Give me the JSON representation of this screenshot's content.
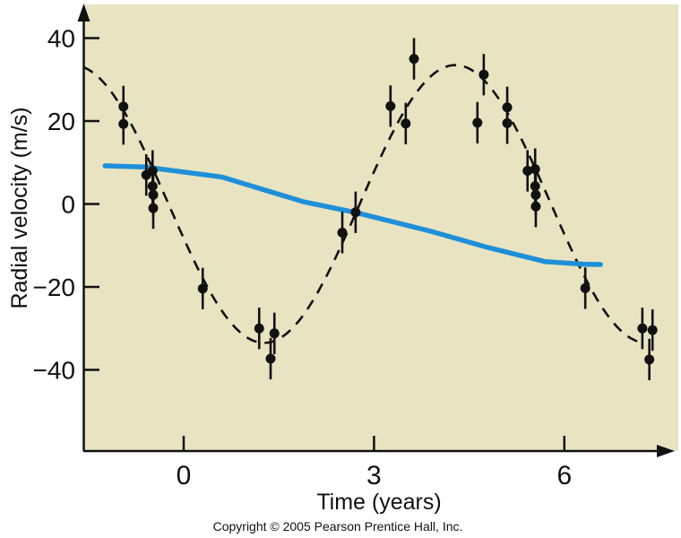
{
  "copyright": "Copyright © 2005 Pearson Prentice Hall, Inc.",
  "chart_data": {
    "type": "scatter",
    "title": "",
    "xlabel": "Time (years)",
    "ylabel": "Radial velocity (m/s)",
    "x_axis": {
      "ticks": [
        0,
        3,
        6
      ],
      "tick_labels": [
        "0",
        "3",
        "6"
      ],
      "range": [
        -1.6,
        7.8
      ]
    },
    "y_axis": {
      "ticks": [
        40,
        20,
        0,
        -20,
        -40
      ],
      "tick_labels": [
        "40",
        "20",
        "0",
        "−20",
        "−40"
      ],
      "range": [
        -60,
        48
      ]
    },
    "grid": false,
    "legend": null,
    "colors": {
      "plot_background": "#e8e4c2",
      "points": "#111111",
      "dashed_fit": "#111111",
      "trend_line": "#1f8fd9"
    },
    "points": {
      "error_bar_mps": 5,
      "data": [
        [
          -0.95,
          23.5
        ],
        [
          -0.95,
          19.3
        ],
        [
          -0.59,
          7.0
        ],
        [
          -0.49,
          8.0
        ],
        [
          -0.49,
          4.3
        ],
        [
          -0.48,
          2.2
        ],
        [
          -0.48,
          -1.0
        ],
        [
          0.3,
          -20.4
        ],
        [
          1.19,
          -30.0
        ],
        [
          1.37,
          -37.3
        ],
        [
          1.43,
          -31.2
        ],
        [
          2.5,
          -6.9
        ],
        [
          2.71,
          -2.0
        ],
        [
          3.26,
          23.6
        ],
        [
          3.5,
          19.4
        ],
        [
          3.63,
          35.0
        ],
        [
          4.63,
          19.6
        ],
        [
          4.73,
          31.2
        ],
        [
          5.1,
          23.3
        ],
        [
          5.1,
          19.5
        ],
        [
          5.42,
          8.0
        ],
        [
          5.54,
          8.4
        ],
        [
          5.54,
          4.3
        ],
        [
          5.55,
          2.2
        ],
        [
          5.55,
          -0.6
        ],
        [
          6.33,
          -20.3
        ],
        [
          7.23,
          -30.0
        ],
        [
          7.34,
          -37.5
        ],
        [
          7.39,
          -30.4
        ]
      ]
    },
    "dashed_fit": {
      "description": "dashed sinusoidal fit",
      "amplitude_mps": 33.5,
      "period_years": 6.03,
      "descending_zero_t": -0.24,
      "t_range": [
        -1.58,
        7.25
      ]
    },
    "trend_line": {
      "description": "solid blue slowly declining trend",
      "points_t_v": [
        [
          -1.24,
          9.2
        ],
        [
          -0.6,
          8.9
        ],
        [
          0.6,
          6.5
        ],
        [
          1.9,
          0.5
        ],
        [
          2.7,
          -2.0
        ],
        [
          3.9,
          -6.6
        ],
        [
          4.8,
          -10.5
        ],
        [
          5.7,
          -13.9
        ],
        [
          6.3,
          -14.5
        ],
        [
          6.57,
          -14.6
        ]
      ]
    }
  }
}
